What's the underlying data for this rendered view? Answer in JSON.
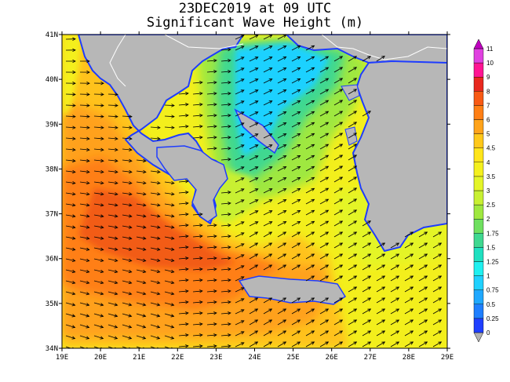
{
  "title": "23DEC2019 at 09 UTC",
  "subtitle": "Significant Wave Height (m)",
  "lon_labels": [
    "19E",
    "20E",
    "21E",
    "22E",
    "23E",
    "24E",
    "25E",
    "26E",
    "27E",
    "28E",
    "29E"
  ],
  "lat_labels": [
    "34N",
    "35N",
    "36N",
    "37N",
    "38N",
    "39N",
    "40N",
    "41N"
  ],
  "colorbar": {
    "levels": [
      "0",
      "0.25",
      "0.5",
      "0.75",
      "1",
      "1.25",
      "1.5",
      "1.75",
      "2",
      "2.5",
      "3",
      "3.5",
      "4",
      "4.5",
      "5",
      "6",
      "7",
      "8",
      "9",
      "10",
      "11"
    ],
    "colors": [
      "#b3b3b3",
      "#1f3fff",
      "#1f7fff",
      "#1fa8ff",
      "#1fd1ff",
      "#1ff0f0",
      "#1fe0c0",
      "#3fd890",
      "#6fe05f",
      "#9fe83f",
      "#c8f032",
      "#e4f528",
      "#f4f01e",
      "#ffe51a",
      "#ffc81a",
      "#ffa31a",
      "#ff7f14",
      "#f85a14",
      "#e8281e",
      "#ff1493",
      "#e040e0",
      "#c000c0"
    ]
  },
  "colors": {
    "land": "#b7b7b7",
    "coast": "#1e3cff",
    "border": "#ffffff",
    "arrow": "#000000"
  }
}
